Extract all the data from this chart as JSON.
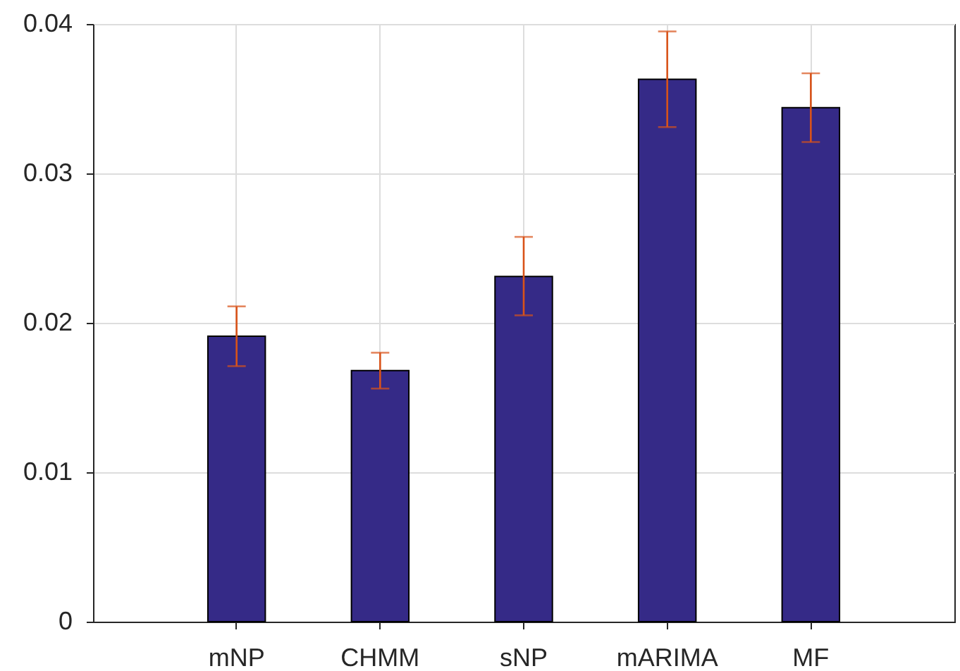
{
  "chart_data": {
    "type": "bar",
    "categories": [
      "mNP",
      "CHMM",
      "sNP",
      "mARIMA",
      "MF"
    ],
    "values": [
      0.0191,
      0.0168,
      0.0231,
      0.0363,
      0.0344
    ],
    "color": "#352a87",
    "errors": [
      [
        0.0171,
        0.0211
      ],
      [
        0.0156,
        0.018
      ],
      [
        0.0205,
        0.02575
      ],
      [
        0.0331,
        0.0395
      ],
      [
        0.0321,
        0.0367
      ]
    ],
    "ylim": [
      0,
      0.04
    ],
    "yticks": [
      0,
      0.01,
      0.02,
      0.03,
      0.04
    ],
    "grid": true
  }
}
